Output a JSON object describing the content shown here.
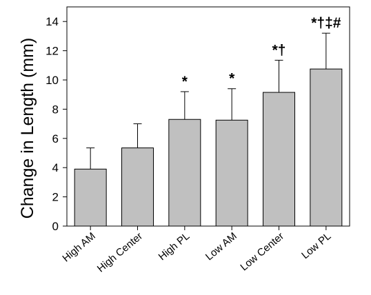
{
  "chart_data": {
    "type": "bar",
    "title": "",
    "xlabel": "",
    "ylabel": "Change in Length (mm)",
    "categories": [
      "High AM",
      "High Center",
      "High PL",
      "Low AM",
      "Low Center",
      "Low PL"
    ],
    "values": [
      3.9,
      5.35,
      7.3,
      7.25,
      9.15,
      10.75
    ],
    "error_upper": [
      5.35,
      7.0,
      9.2,
      9.4,
      11.35,
      13.2
    ],
    "significance": [
      "",
      "",
      "*",
      "*",
      "*†",
      "*†‡#"
    ],
    "ylim": [
      0,
      15
    ],
    "yticks": [
      0,
      2,
      4,
      6,
      8,
      10,
      12,
      14
    ],
    "ytick_labels": [
      "0",
      "2",
      "4",
      "6",
      "8",
      "10",
      "12",
      "14"
    ],
    "grid": false,
    "bar_color": "#c0c0c0",
    "edge_color": "#000000"
  }
}
